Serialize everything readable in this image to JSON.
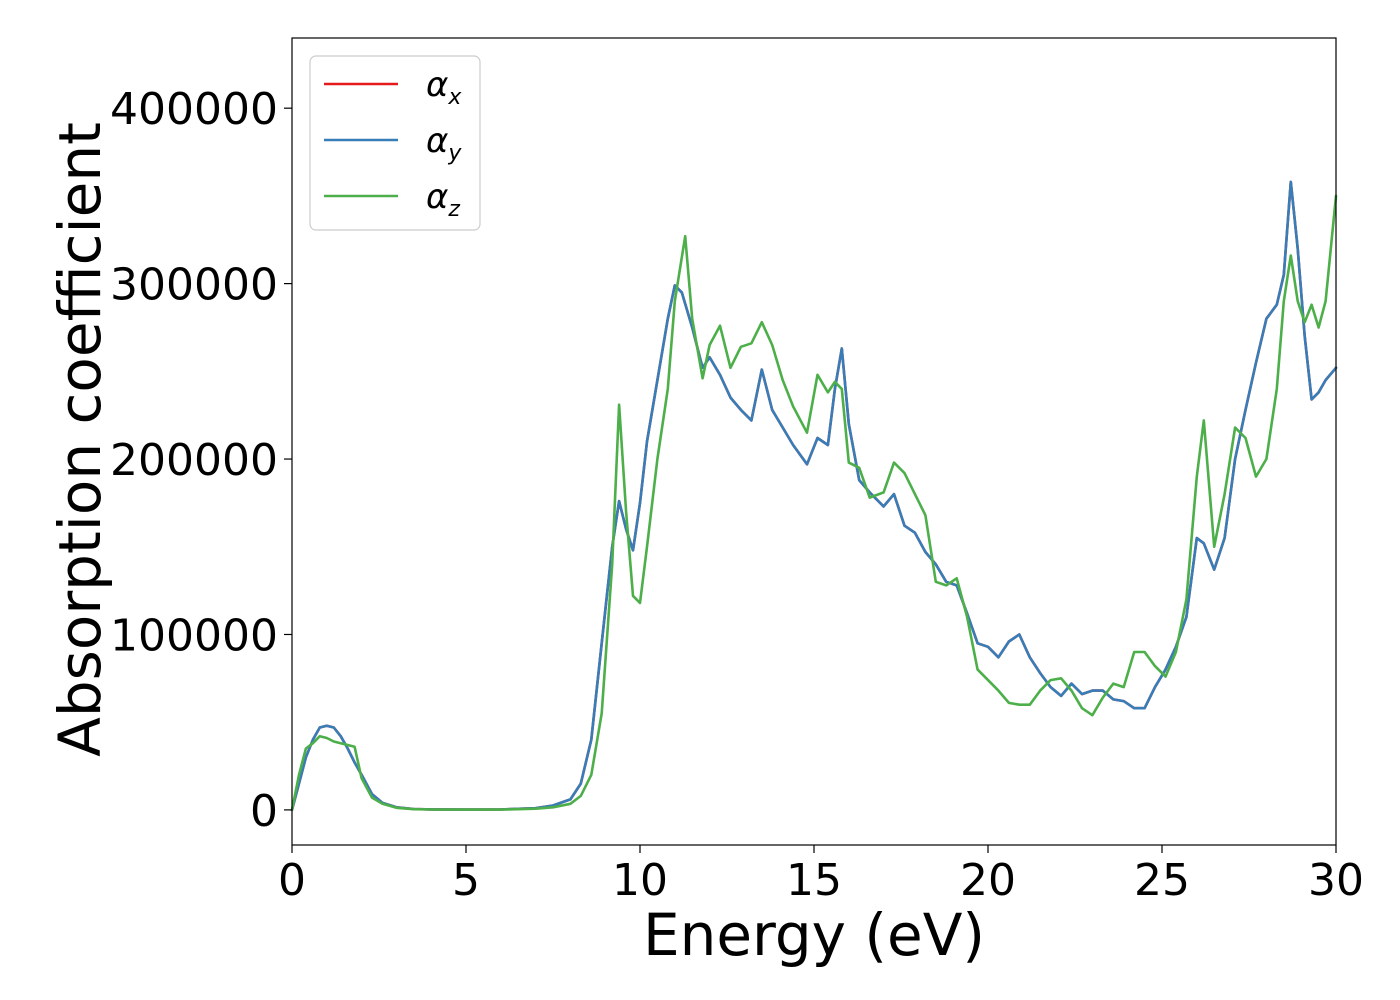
{
  "chart_data": {
    "type": "line",
    "xlabel": "Energy (eV)",
    "ylabel": "Absorption coefficient",
    "xlim": [
      0,
      30
    ],
    "ylim": [
      -20000,
      440000
    ],
    "xticks": [
      0,
      5,
      10,
      15,
      20,
      25,
      30
    ],
    "yticks": [
      0,
      100000,
      200000,
      300000,
      400000
    ],
    "grid": false,
    "legend_position": "top-left",
    "series": [
      {
        "name": "α",
        "subscript": "x",
        "color": "#e41a1c",
        "x": [
          0,
          0.2,
          0.4,
          0.6,
          0.8,
          1.0,
          1.2,
          1.4,
          1.6,
          1.8,
          2.0,
          2.3,
          2.6,
          3.0,
          3.5,
          4.0,
          5.0,
          6.0,
          7.0,
          7.5,
          8.0,
          8.3,
          8.6,
          8.9,
          9.2,
          9.4,
          9.6,
          9.8,
          10.0,
          10.2,
          10.5,
          10.8,
          11.0,
          11.2,
          11.5,
          11.8,
          12.0,
          12.3,
          12.6,
          12.9,
          13.2,
          13.5,
          13.8,
          14.1,
          14.4,
          14.8,
          15.1,
          15.4,
          15.6,
          15.8,
          16.0,
          16.3,
          16.6,
          17.0,
          17.3,
          17.6,
          17.9,
          18.2,
          18.5,
          18.8,
          19.1,
          19.4,
          19.7,
          20.0,
          20.3,
          20.6,
          20.9,
          21.2,
          21.5,
          21.8,
          22.1,
          22.4,
          22.7,
          23.0,
          23.3,
          23.6,
          23.9,
          24.2,
          24.5,
          24.8,
          25.1,
          25.4,
          25.7,
          26.0,
          26.2,
          26.5,
          26.8,
          27.1,
          27.4,
          27.7,
          28.0,
          28.3,
          28.5,
          28.7,
          28.9,
          29.1,
          29.3,
          29.5,
          29.7,
          30.0
        ],
        "y": [
          0,
          15000,
          30000,
          40000,
          47000,
          48000,
          47000,
          42000,
          35000,
          27000,
          20000,
          9000,
          4000,
          1500,
          500,
          300,
          200,
          300,
          1000,
          2500,
          6000,
          15000,
          40000,
          95000,
          150000,
          176000,
          160000,
          148000,
          175000,
          210000,
          245000,
          280000,
          299000,
          295000,
          275000,
          252000,
          258000,
          248000,
          235000,
          228000,
          222000,
          251000,
          228000,
          218000,
          208000,
          197000,
          212000,
          208000,
          240000,
          263000,
          220000,
          188000,
          181000,
          173000,
          180000,
          162000,
          158000,
          147000,
          140000,
          130000,
          128000,
          112000,
          95000,
          93000,
          87000,
          96000,
          100000,
          87000,
          78000,
          70000,
          65000,
          72000,
          66000,
          68000,
          68000,
          63000,
          62000,
          58000,
          58000,
          70000,
          80000,
          93000,
          110000,
          155000,
          152000,
          137000,
          155000,
          200000,
          228000,
          255000,
          280000,
          288000,
          305000,
          358000,
          320000,
          270000,
          234000,
          238000,
          245000,
          252000
        ]
      },
      {
        "name": "α",
        "subscript": "y",
        "color": "#377eb8",
        "x": [
          0,
          0.2,
          0.4,
          0.6,
          0.8,
          1.0,
          1.2,
          1.4,
          1.6,
          1.8,
          2.0,
          2.3,
          2.6,
          3.0,
          3.5,
          4.0,
          5.0,
          6.0,
          7.0,
          7.5,
          8.0,
          8.3,
          8.6,
          8.9,
          9.2,
          9.4,
          9.6,
          9.8,
          10.0,
          10.2,
          10.5,
          10.8,
          11.0,
          11.2,
          11.5,
          11.8,
          12.0,
          12.3,
          12.6,
          12.9,
          13.2,
          13.5,
          13.8,
          14.1,
          14.4,
          14.8,
          15.1,
          15.4,
          15.6,
          15.8,
          16.0,
          16.3,
          16.6,
          17.0,
          17.3,
          17.6,
          17.9,
          18.2,
          18.5,
          18.8,
          19.1,
          19.4,
          19.7,
          20.0,
          20.3,
          20.6,
          20.9,
          21.2,
          21.5,
          21.8,
          22.1,
          22.4,
          22.7,
          23.0,
          23.3,
          23.6,
          23.9,
          24.2,
          24.5,
          24.8,
          25.1,
          25.4,
          25.7,
          26.0,
          26.2,
          26.5,
          26.8,
          27.1,
          27.4,
          27.7,
          28.0,
          28.3,
          28.5,
          28.7,
          28.9,
          29.1,
          29.3,
          29.5,
          29.7,
          30.0
        ],
        "y": [
          0,
          15000,
          30000,
          40000,
          47000,
          48000,
          47000,
          42000,
          35000,
          27000,
          20000,
          9000,
          4000,
          1500,
          500,
          300,
          200,
          300,
          1000,
          2500,
          6000,
          15000,
          40000,
          95000,
          150000,
          176000,
          160000,
          148000,
          175000,
          210000,
          245000,
          280000,
          299000,
          295000,
          275000,
          252000,
          258000,
          248000,
          235000,
          228000,
          222000,
          251000,
          228000,
          218000,
          208000,
          197000,
          212000,
          208000,
          240000,
          263000,
          220000,
          188000,
          181000,
          173000,
          180000,
          162000,
          158000,
          147000,
          140000,
          130000,
          128000,
          112000,
          95000,
          93000,
          87000,
          96000,
          100000,
          87000,
          78000,
          70000,
          65000,
          72000,
          66000,
          68000,
          68000,
          63000,
          62000,
          58000,
          58000,
          70000,
          80000,
          93000,
          110000,
          155000,
          152000,
          137000,
          155000,
          200000,
          228000,
          255000,
          280000,
          288000,
          305000,
          358000,
          320000,
          270000,
          234000,
          238000,
          245000,
          252000
        ]
      },
      {
        "name": "α",
        "subscript": "z",
        "color": "#4daf4a",
        "x": [
          0,
          0.2,
          0.4,
          0.6,
          0.8,
          1.0,
          1.2,
          1.4,
          1.6,
          1.8,
          2.0,
          2.3,
          2.6,
          3.0,
          3.5,
          4.0,
          5.0,
          6.0,
          7.0,
          7.5,
          8.0,
          8.3,
          8.6,
          8.9,
          9.2,
          9.4,
          9.6,
          9.8,
          10.0,
          10.2,
          10.5,
          10.8,
          11.0,
          11.3,
          11.5,
          11.8,
          12.0,
          12.3,
          12.6,
          12.9,
          13.2,
          13.5,
          13.8,
          14.1,
          14.4,
          14.8,
          15.1,
          15.4,
          15.6,
          15.8,
          16.0,
          16.3,
          16.6,
          17.0,
          17.3,
          17.6,
          17.9,
          18.2,
          18.5,
          18.8,
          19.1,
          19.4,
          19.7,
          20.0,
          20.3,
          20.6,
          20.9,
          21.2,
          21.5,
          21.8,
          22.1,
          22.4,
          22.7,
          23.0,
          23.3,
          23.6,
          23.9,
          24.2,
          24.5,
          24.8,
          25.1,
          25.4,
          25.7,
          26.0,
          26.2,
          26.5,
          26.8,
          27.1,
          27.4,
          27.7,
          28.0,
          28.3,
          28.5,
          28.7,
          28.9,
          29.1,
          29.3,
          29.5,
          29.7,
          30.0
        ],
        "y": [
          0,
          20000,
          35000,
          38000,
          42000,
          41000,
          39000,
          38000,
          37000,
          36000,
          18000,
          7000,
          3500,
          1200,
          400,
          250,
          150,
          200,
          700,
          1500,
          3500,
          8000,
          20000,
          55000,
          140000,
          231000,
          170000,
          122000,
          118000,
          150000,
          200000,
          240000,
          290000,
          327000,
          280000,
          246000,
          265000,
          276000,
          252000,
          264000,
          266000,
          278000,
          265000,
          245000,
          230000,
          215000,
          248000,
          238000,
          244000,
          240000,
          198000,
          195000,
          178000,
          181000,
          198000,
          192000,
          180000,
          168000,
          130000,
          128000,
          132000,
          110000,
          80000,
          74000,
          68000,
          61000,
          60000,
          60000,
          68000,
          74000,
          75000,
          68000,
          58000,
          54000,
          64000,
          72000,
          70000,
          90000,
          90000,
          82000,
          76000,
          90000,
          120000,
          190000,
          222000,
          150000,
          180000,
          218000,
          212000,
          190000,
          200000,
          240000,
          290000,
          316000,
          290000,
          278000,
          288000,
          275000,
          290000,
          350000
        ]
      }
    ]
  }
}
